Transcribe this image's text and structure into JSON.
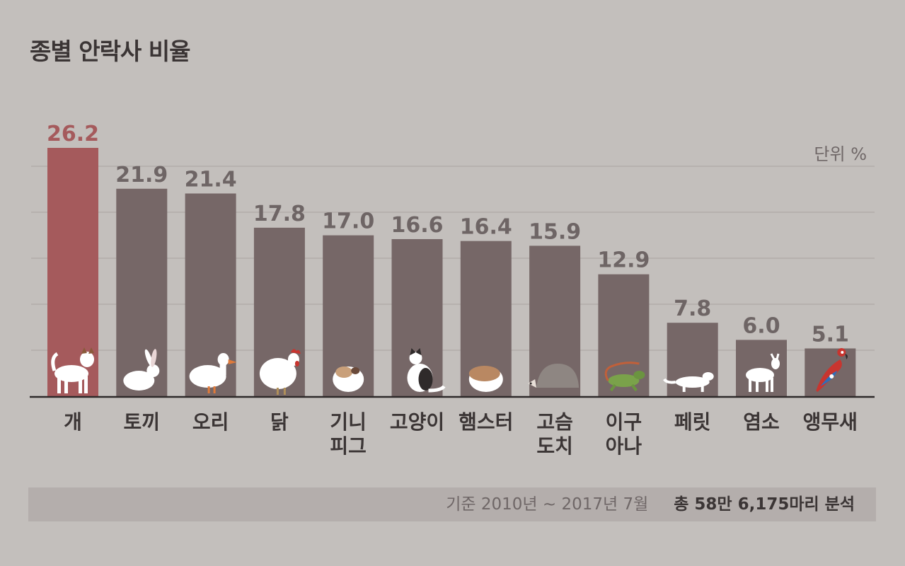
{
  "chart_data": {
    "type": "bar",
    "title": "종별 안락사 비율",
    "unit_label": "단위 %",
    "categories": [
      "개",
      "토끼",
      "오리",
      "닭",
      "기니\n피그",
      "고양이",
      "햄스터",
      "고슴\n도치",
      "이구\n아나",
      "페릿",
      "염소",
      "앵무새"
    ],
    "values": [
      26.2,
      21.9,
      21.4,
      17.8,
      17.0,
      16.6,
      16.4,
      15.9,
      12.9,
      7.8,
      6.0,
      5.1
    ],
    "value_labels": [
      "26.2",
      "21.9",
      "21.4",
      "17.8",
      "17.0",
      "16.6",
      "16.4",
      "15.9",
      "12.9",
      "7.8",
      "6.0",
      "5.1"
    ],
    "icons": [
      "dog-icon",
      "rabbit-icon",
      "duck-icon",
      "chicken-icon",
      "guinea-pig-icon",
      "cat-icon",
      "hamster-icon",
      "hedgehog-icon",
      "iguana-icon",
      "ferret-icon",
      "goat-icon",
      "parrot-icon"
    ],
    "highlight_index": 0,
    "ylim": [
      0,
      26.2
    ],
    "grid": true,
    "colors": {
      "background": "#c3bfbc",
      "bar": "#766767",
      "highlight_bar": "#a55a5c",
      "value_label": "#6e6565",
      "highlight_label": "#a55a5c",
      "axis": "#2e2a2a",
      "gridline": "#a9a3a1",
      "icon": "#ffffff"
    }
  },
  "footer": {
    "period": "기준 2010년 ~ 2017년 7월",
    "total": "총 58만 6,175마리 분석"
  }
}
